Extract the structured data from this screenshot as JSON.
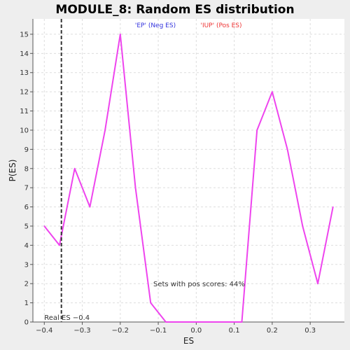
{
  "chart_data": {
    "type": "line",
    "title": "MODULE_8: Random ES distribution",
    "xlabel": "ES",
    "ylabel": "P(ES)",
    "xlim": [
      -0.43,
      0.39
    ],
    "ylim": [
      0,
      15.8
    ],
    "xticks": [
      -0.4,
      -0.3,
      -0.2,
      -0.1,
      0.0,
      0.1,
      0.2,
      0.3
    ],
    "xtick_labels": [
      "−0.4",
      "−0.3",
      "−0.2",
      "−0.1",
      "0.0",
      "0.1",
      "0.2",
      "0.3"
    ],
    "yticks": [
      0,
      1,
      2,
      3,
      4,
      5,
      6,
      7,
      8,
      9,
      10,
      11,
      12,
      13,
      14,
      15
    ],
    "ytick_labels": [
      "0",
      "1",
      "2",
      "3",
      "4",
      "5",
      "6",
      "7",
      "8",
      "9",
      "10",
      "11",
      "12",
      "13",
      "14",
      "15"
    ],
    "grid": true,
    "series": [
      {
        "color": "#ee44ee",
        "x": [
          -0.4,
          -0.36,
          -0.32,
          -0.28,
          -0.24,
          -0.2,
          -0.16,
          -0.12,
          -0.08,
          -0.04,
          0.0,
          0.04,
          0.08,
          0.12,
          0.16,
          0.2,
          0.24,
          0.28,
          0.32,
          0.36
        ],
        "y": [
          5,
          4,
          8,
          6,
          10,
          15,
          7,
          1,
          0,
          0,
          0,
          0,
          0,
          0,
          10,
          12,
          9,
          5,
          2,
          6
        ]
      }
    ],
    "real_es": {
      "x": -0.355,
      "label": "Real ES −0.4",
      "line_color": "#333333"
    },
    "legend": [
      {
        "label": "'EP' (Neg ES)",
        "color": "#3333dd"
      },
      {
        "label": "'IUP' (Pos ES)",
        "color": "#ee3333"
      }
    ],
    "annotation": "Sets with pos scores: 44%",
    "background": "#eeeeee",
    "plot_background": "#ffffff"
  }
}
